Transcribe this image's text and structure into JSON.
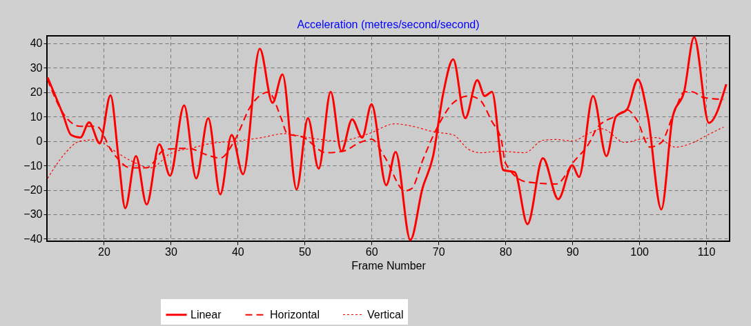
{
  "chart_data": {
    "type": "line",
    "title": "Acceleration (metres/second/second)",
    "xlabel": "Frame Number",
    "xlim": [
      11.5,
      113.5
    ],
    "xticks": [
      20,
      30,
      40,
      50,
      60,
      70,
      80,
      90,
      100,
      110
    ],
    "ylim": [
      -41,
      43
    ],
    "yticks": [
      -40,
      -30,
      -20,
      -10,
      0,
      10,
      20,
      30,
      40
    ],
    "grid": true,
    "legend": "bottom",
    "marker": "none",
    "series": [
      {
        "name": "Linear",
        "color": "#ff0000",
        "line_style": "solid",
        "x": [
          11.6,
          13.9,
          15.1,
          16.5,
          17.8,
          19.4,
          21,
          22.2,
          23.2,
          24.8,
          26.4,
          28.3,
          29.9,
          32,
          33.8,
          35.6,
          37.4,
          39.1,
          40.8,
          43.3,
          45.2,
          46.7,
          48.8,
          50.5,
          52.1,
          53.9,
          55.5,
          57.1,
          58.6,
          60,
          62.2,
          63.6,
          65.8,
          67.6,
          69.2,
          70.7,
          72.2,
          74,
          75.8,
          76.9,
          78,
          79.7,
          81.4,
          83.3,
          85.6,
          87.9,
          90,
          91,
          93.1,
          95.1,
          96.5,
          98.2,
          99.8,
          101.3,
          103.3,
          105,
          106.7,
          108.2,
          110.4,
          113
        ],
        "values": [
          26,
          10.8,
          2.5,
          1.4,
          7.6,
          -1,
          18.7,
          -7,
          -27.5,
          -6.2,
          -26,
          -1.4,
          -14.2,
          14.5,
          -15.3,
          9.3,
          -21.8,
          2.5,
          -13.6,
          37.7,
          15.6,
          27.2,
          -19.8,
          9.3,
          -11.3,
          20.1,
          -4.2,
          8.8,
          1.4,
          15,
          -18.1,
          -4.5,
          -40.5,
          -19.5,
          -6.2,
          19.3,
          33.4,
          9.3,
          24.9,
          18.4,
          20.1,
          -11.9,
          -12.8,
          -34,
          -7,
          -23.8,
          -9.9,
          -14.7,
          18.4,
          -6.2,
          9.9,
          13,
          25.2,
          9.9,
          -28,
          9.9,
          20.1,
          42.5,
          7.4,
          23.2
        ]
      },
      {
        "name": "Horizontal",
        "color": "#ff0000",
        "line_style": "dashed",
        "x": [
          11.6,
          14,
          16.5,
          18.9,
          21.2,
          24,
          26.4,
          29.2,
          32.6,
          35.4,
          37.4,
          39.5,
          42,
          44.6,
          46.5,
          47.4,
          49.8,
          53.2,
          55.7,
          58.3,
          60,
          61.9,
          65,
          66,
          67.6,
          70.1,
          72.2,
          74.5,
          76.1,
          78,
          79.4,
          80,
          83.1,
          87.6,
          90.3,
          92.4,
          93.8,
          96.5,
          98.2,
          99.6,
          101.6,
          103.3,
          105.2,
          106.8,
          107.9,
          109.6,
          112.6
        ],
        "values": [
          25,
          11,
          6,
          6,
          -4.2,
          -11,
          -11,
          -3.4,
          -3,
          -5.7,
          -7,
          0,
          14.5,
          20,
          9.3,
          3,
          1.5,
          -4.8,
          -4.2,
          -0.6,
          0.7,
          -6.2,
          -20.4,
          -19.5,
          -8.2,
          7,
          15.6,
          18.4,
          17,
          7.9,
          0.3,
          -9,
          -16.7,
          -17.6,
          -8.2,
          -1.4,
          5.7,
          10.2,
          12.7,
          8.8,
          -2.5,
          -0.6,
          11.6,
          20.1,
          20.1,
          17.8,
          17
        ]
      },
      {
        "name": "Vertical",
        "color": "#ff0000",
        "line_style": "dotted",
        "x": [
          11.6,
          14.1,
          16.5,
          18.9,
          21.2,
          24,
          27,
          30,
          33,
          36,
          40,
          43.6,
          47,
          50.5,
          55,
          59.6,
          63.5,
          65.8,
          69.4,
          72.2,
          74.5,
          76.2,
          79.2,
          82.9,
          85.6,
          87.6,
          90,
          92.4,
          94.4,
          97.9,
          99.9,
          102.6,
          105.4,
          108.1,
          110.1,
          112.6
        ],
        "values": [
          -15.3,
          -5.4,
          0,
          0.5,
          -3.4,
          -8,
          -11,
          -5,
          -3,
          -1,
          0,
          1.4,
          3,
          1.4,
          0,
          3,
          7,
          6.2,
          3.7,
          2.5,
          -3.4,
          -4.8,
          -4.2,
          -4.8,
          0.3,
          0.6,
          0,
          3,
          5,
          -0.6,
          0.6,
          1.4,
          -2.5,
          -0.6,
          2.3,
          5.7
        ]
      }
    ]
  }
}
